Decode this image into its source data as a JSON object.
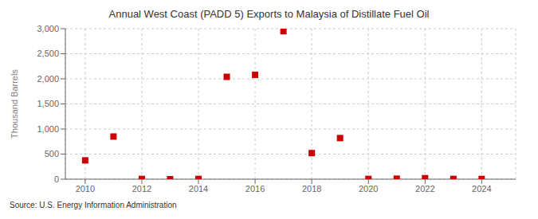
{
  "chart_data": {
    "type": "scatter",
    "title": "Annual West Coast (PADD 5) Exports to Malaysia of Distillate Fuel Oil",
    "ylabel": "Thousand Barrels",
    "annotation": "Source: U.S. Energy Information Administration",
    "x": [
      2010,
      2011,
      2012,
      2013,
      2014,
      2015,
      2016,
      2017,
      2018,
      2019,
      2020,
      2021,
      2022,
      2023,
      2024
    ],
    "values": [
      375,
      850,
      5,
      0,
      5,
      2040,
      2080,
      2950,
      520,
      820,
      5,
      10,
      20,
      5,
      5
    ],
    "color": "#cc0000",
    "marker": "square",
    "xlim": [
      2009.3,
      2025.2
    ],
    "xticks": [
      2010,
      2012,
      2014,
      2016,
      2018,
      2020,
      2022,
      2024
    ],
    "ylim": [
      0,
      3000
    ],
    "yticks": [
      0,
      500,
      {
        "value": 1000,
        "label": "1,000"
      },
      {
        "value": 1500,
        "label": "1,500"
      },
      {
        "value": 2000,
        "label": "2,000"
      },
      {
        "value": 2500,
        "label": "2,500"
      },
      {
        "value": 3000,
        "label": "3,000"
      }
    ],
    "grid": true
  }
}
